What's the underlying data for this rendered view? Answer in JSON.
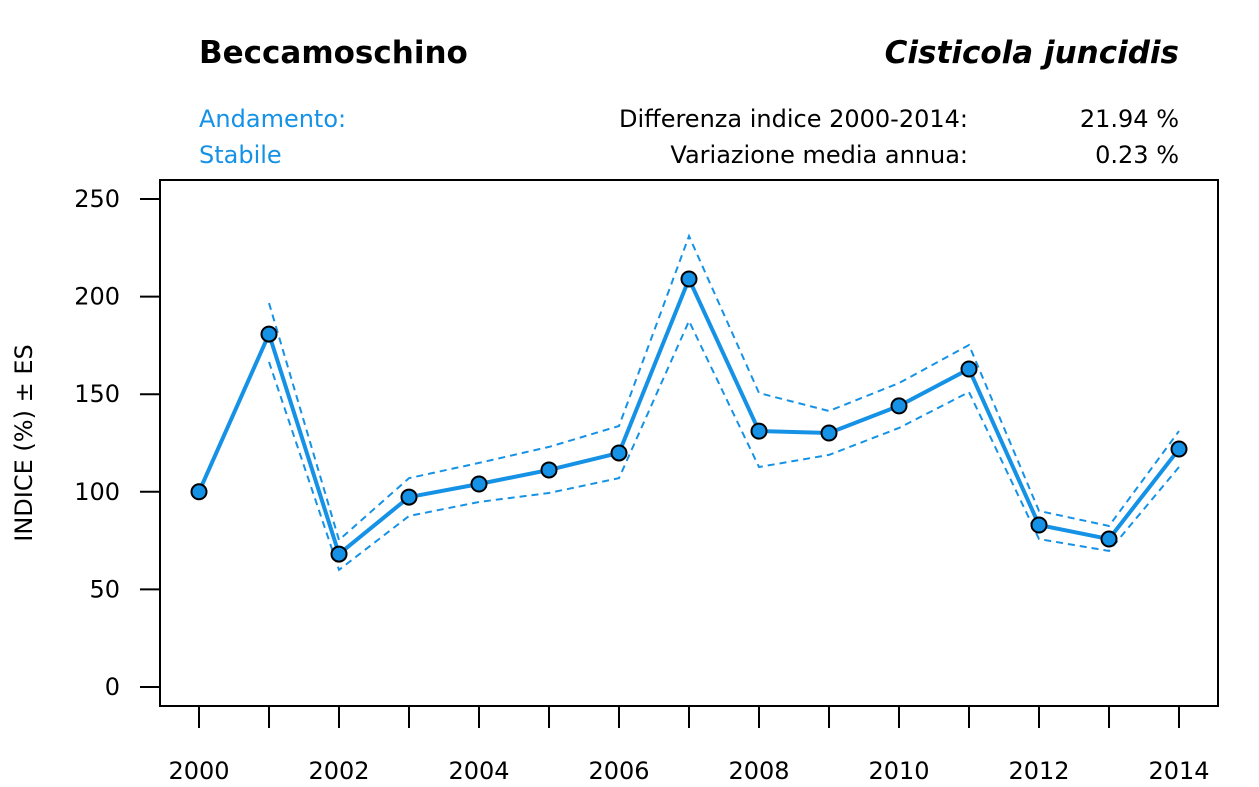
{
  "header": {
    "common_name": "Beccamoschino",
    "scientific_name": "Cisticola juncidis",
    "trend_label": "Andamento:",
    "trend_value": "Stabile",
    "diff_label": "Differenza indice 2000-2014:",
    "diff_value": "21.94 %",
    "avg_label": "Variazione media annua:",
    "avg_value": "0.23 %"
  },
  "colors": {
    "accent": "#1592e6",
    "text": "#000000"
  },
  "chart_data": {
    "type": "line",
    "title": "Beccamoschino",
    "xlabel": "",
    "ylabel": "INDICE (%) ± ES",
    "ylim": [
      0,
      250
    ],
    "xlim": [
      2000,
      2014
    ],
    "yticks": [
      0,
      50,
      100,
      150,
      200,
      250
    ],
    "xticks_labeled": [
      2000,
      2002,
      2004,
      2006,
      2008,
      2010,
      2012,
      2014
    ],
    "x": [
      2000,
      2001,
      2002,
      2003,
      2004,
      2005,
      2006,
      2007,
      2008,
      2009,
      2010,
      2011,
      2012,
      2013,
      2014
    ],
    "series": [
      {
        "name": "Indice",
        "values": [
          100,
          180.8,
          68.1,
          97.3,
          104,
          111.2,
          119.9,
          209,
          131.1,
          130.1,
          144,
          162.9,
          83,
          75.8,
          121.9
        ]
      },
      {
        "name": "Indice + ES",
        "values": [
          null,
          196.7,
          75.3,
          107,
          114.8,
          123,
          133.7,
          231,
          150.6,
          141.4,
          155.7,
          175.2,
          90.2,
          82.5,
          131.1
        ]
      },
      {
        "name": "Indice - ES",
        "values": [
          null,
          166.5,
          60,
          87.6,
          94.8,
          99.4,
          107,
          187.5,
          112.7,
          118.9,
          132.7,
          151.1,
          75.8,
          69.7,
          112.7
        ]
      }
    ],
    "grid": false
  }
}
